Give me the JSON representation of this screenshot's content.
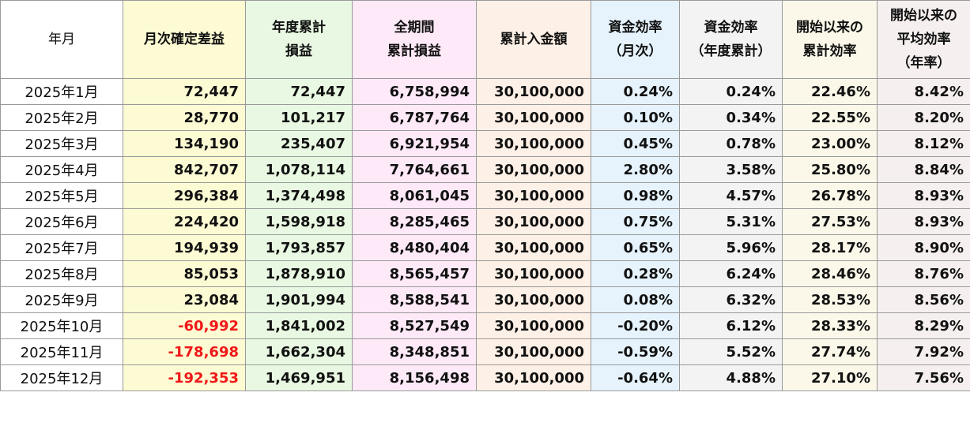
{
  "headers": [
    {
      "key": "month",
      "lines": [
        "年月"
      ]
    },
    {
      "key": "monthly_profit",
      "lines": [
        "月次確定差益"
      ]
    },
    {
      "key": "ytd_profit",
      "lines": [
        "年度累計",
        "損益"
      ]
    },
    {
      "key": "total_profit",
      "lines": [
        "全期間",
        "累計損益"
      ]
    },
    {
      "key": "deposit",
      "lines": [
        "累計入金額"
      ]
    },
    {
      "key": "eff_month",
      "lines": [
        "資金効率",
        "（月次）"
      ]
    },
    {
      "key": "eff_ytd",
      "lines": [
        "資金効率",
        "（年度累計）"
      ]
    },
    {
      "key": "eff_cum",
      "lines": [
        "開始以来の",
        "累計効率"
      ]
    },
    {
      "key": "eff_avg",
      "lines": [
        "開始以来の",
        "平均効率",
        "（年率）"
      ]
    }
  ],
  "rows": [
    [
      "2025年1月",
      "72,447",
      "72,447",
      "6,758,994",
      "30,100,000",
      "0.24%",
      "0.24%",
      "22.46%",
      "8.42%"
    ],
    [
      "2025年2月",
      "28,770",
      "101,217",
      "6,787,764",
      "30,100,000",
      "0.10%",
      "0.34%",
      "22.55%",
      "8.20%"
    ],
    [
      "2025年3月",
      "134,190",
      "235,407",
      "6,921,954",
      "30,100,000",
      "0.45%",
      "0.78%",
      "23.00%",
      "8.12%"
    ],
    [
      "2025年4月",
      "842,707",
      "1,078,114",
      "7,764,661",
      "30,100,000",
      "2.80%",
      "3.58%",
      "25.80%",
      "8.84%"
    ],
    [
      "2025年5月",
      "296,384",
      "1,374,498",
      "8,061,045",
      "30,100,000",
      "0.98%",
      "4.57%",
      "26.78%",
      "8.93%"
    ],
    [
      "2025年6月",
      "224,420",
      "1,598,918",
      "8,285,465",
      "30,100,000",
      "0.75%",
      "5.31%",
      "27.53%",
      "8.93%"
    ],
    [
      "2025年7月",
      "194,939",
      "1,793,857",
      "8,480,404",
      "30,100,000",
      "0.65%",
      "5.96%",
      "28.17%",
      "8.90%"
    ],
    [
      "2025年8月",
      "85,053",
      "1,878,910",
      "8,565,457",
      "30,100,000",
      "0.28%",
      "6.24%",
      "28.46%",
      "8.76%"
    ],
    [
      "2025年9月",
      "23,084",
      "1,901,994",
      "8,588,541",
      "30,100,000",
      "0.08%",
      "6.32%",
      "28.53%",
      "8.56%"
    ],
    [
      "2025年10月",
      "-60,992",
      "1,841,002",
      "8,527,549",
      "30,100,000",
      "-0.20%",
      "6.12%",
      "28.33%",
      "8.29%"
    ],
    [
      "2025年11月",
      "-178,698",
      "1,662,304",
      "8,348,851",
      "30,100,000",
      "-0.59%",
      "5.52%",
      "27.74%",
      "7.92%"
    ],
    [
      "2025年12月",
      "-192,353",
      "1,469,951",
      "8,156,498",
      "30,100,000",
      "-0.64%",
      "4.88%",
      "27.10%",
      "7.56%"
    ]
  ],
  "colors": {
    "negative_profit": "#f01818",
    "col_monthly_profit": "#fdfbd3",
    "col_ytd_profit": "#e8f8e2",
    "col_total_profit": "#fde9f7",
    "col_deposit": "#fdf0e6",
    "col_eff_month": "#e6f3fd",
    "col_eff_ytd": "#f3f3f3",
    "col_eff_cum": "#fbf8e9",
    "col_eff_avg": "#f6efef"
  }
}
